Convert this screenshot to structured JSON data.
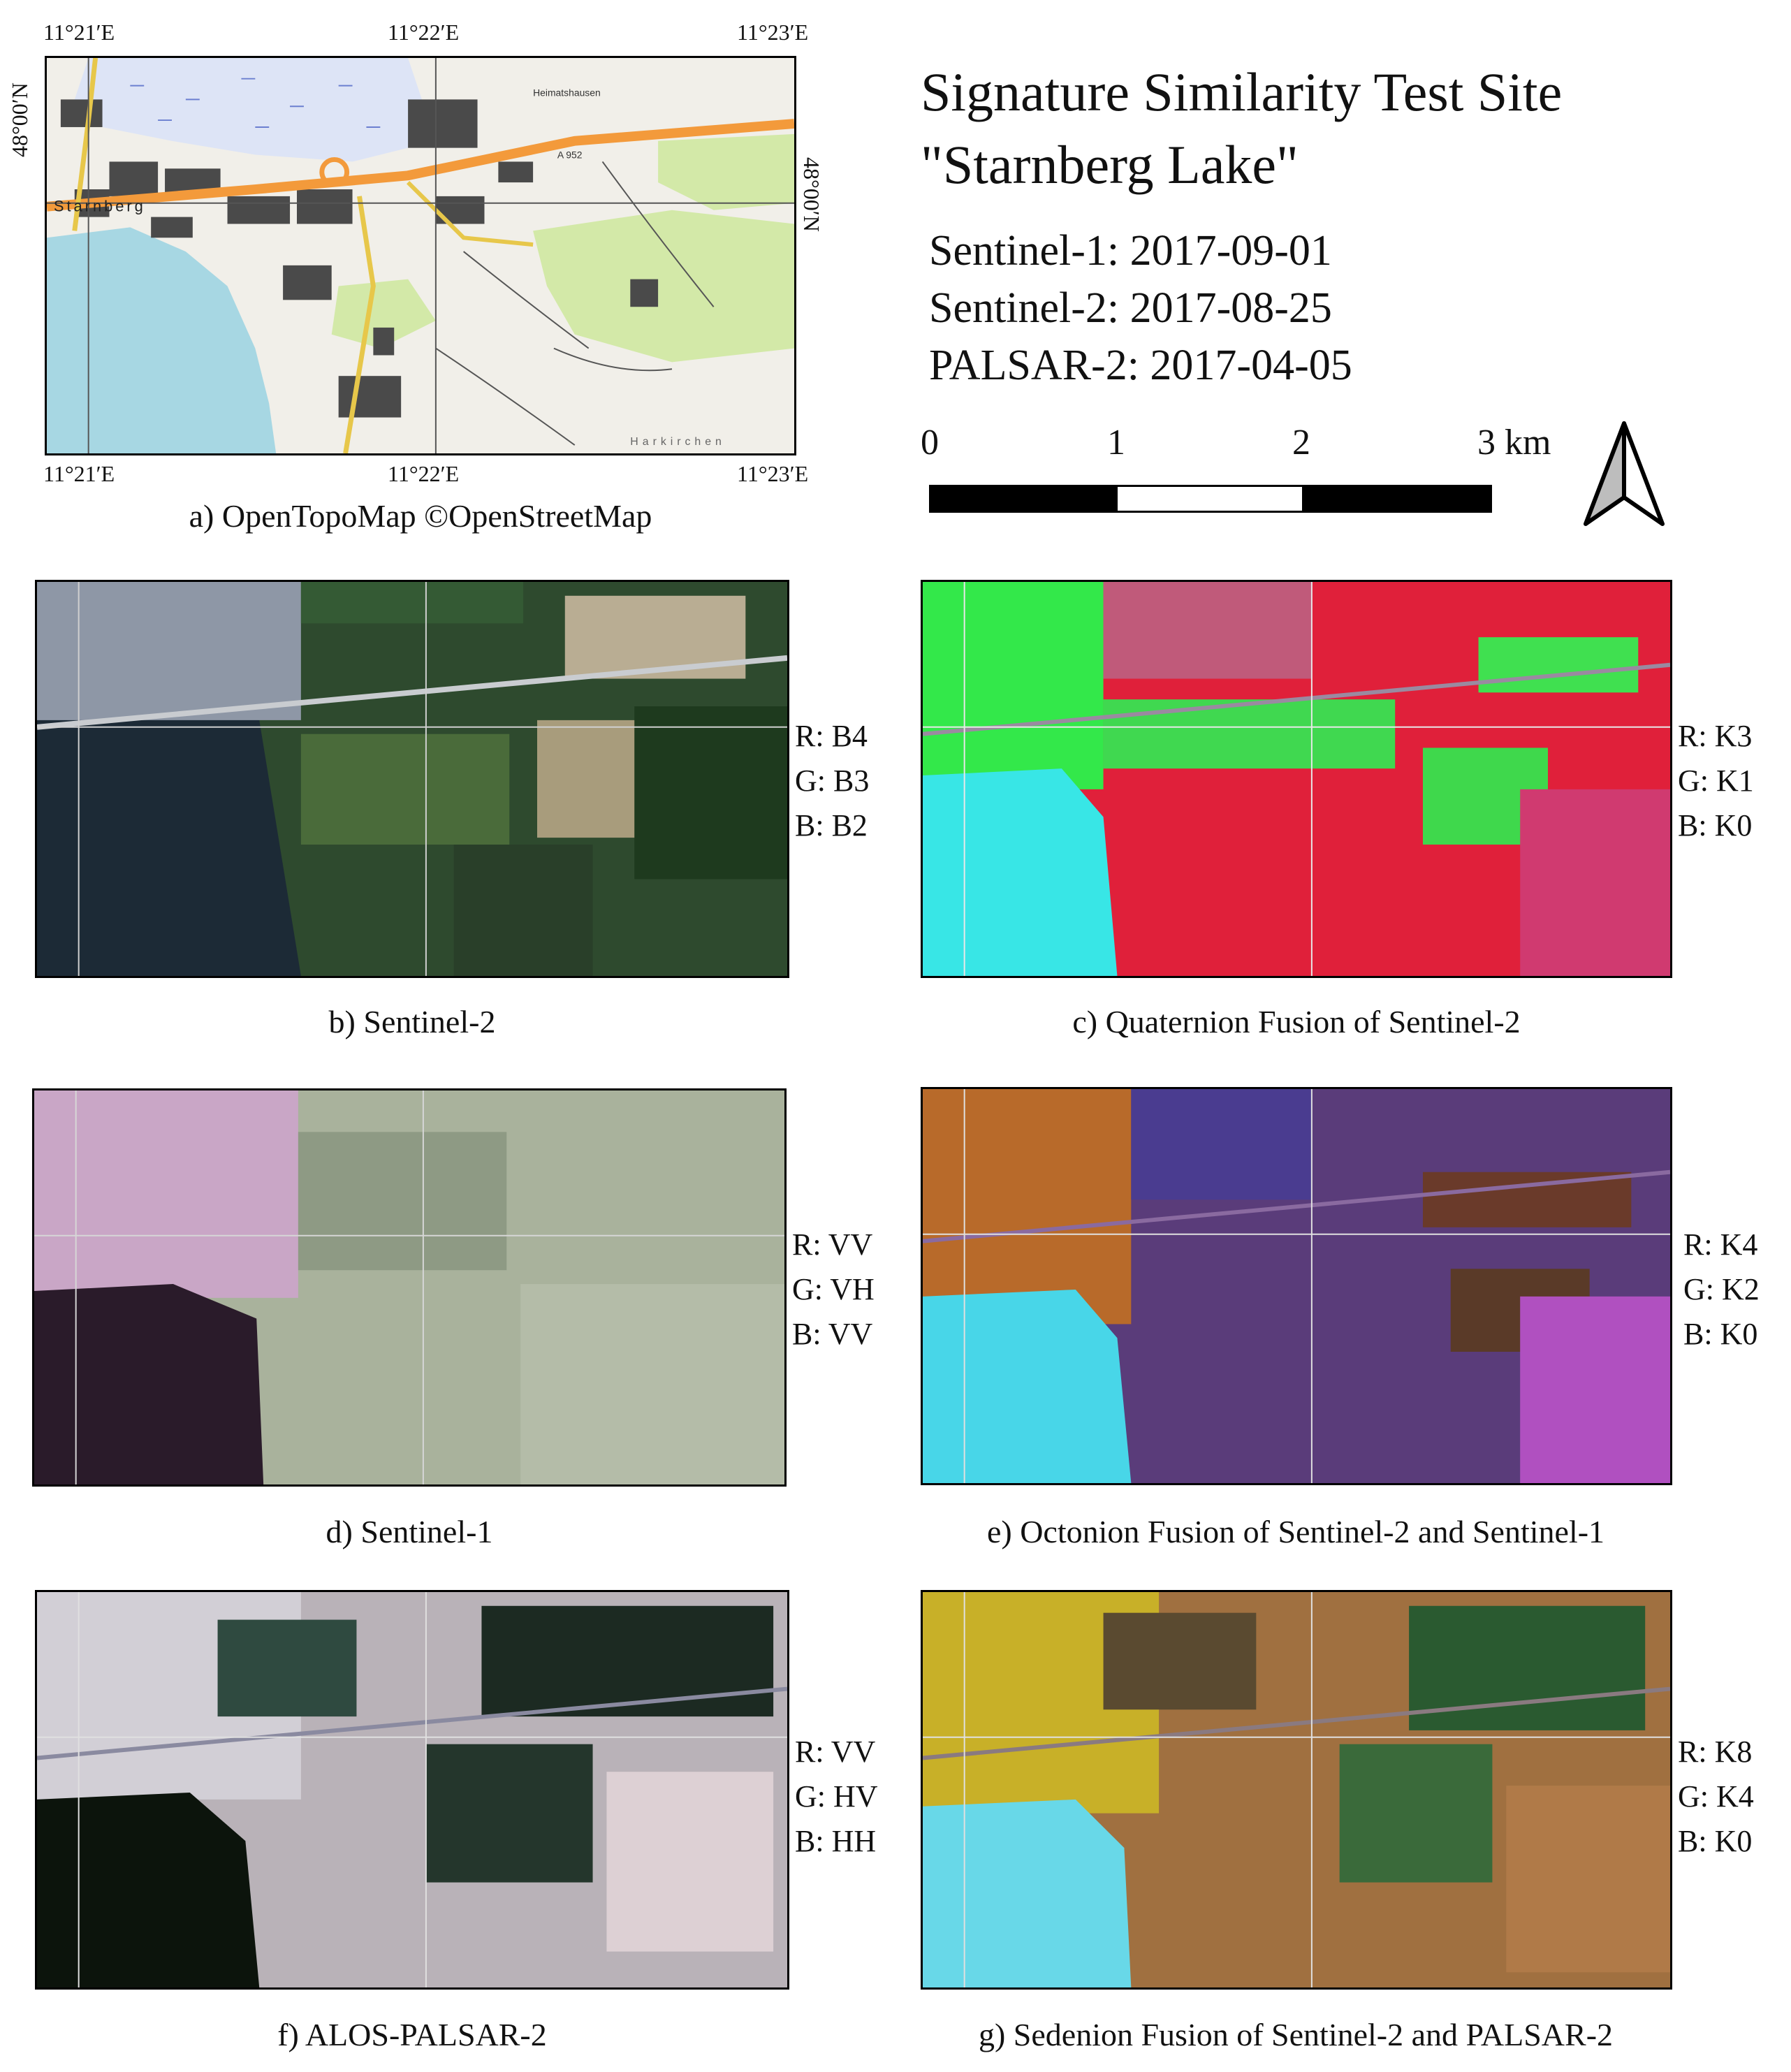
{
  "map": {
    "coords_top": [
      "11°21′E",
      "11°22′E",
      "11°23′E"
    ],
    "coords_bottom": [
      "11°21′E",
      "11°22′E",
      "11°23′E"
    ],
    "lat_left": "48°00′N",
    "lat_right": "48°00′N",
    "place_labels": [
      "Heimatshausen",
      "A 952",
      "Harkirchen"
    ],
    "town_label": "Starnberg",
    "caption": "a) OpenTopoMap ©OpenStreetMap"
  },
  "header": {
    "title_line1": "Signature Similarity Test Site",
    "title_line2": "\"Starnberg Lake\"",
    "dates": [
      "Sentinel-1: 2017-09-01",
      "Sentinel-2: 2017-08-25",
      "PALSAR-2: 2017-04-05"
    ]
  },
  "scale": {
    "labels": [
      "0",
      "1",
      "2",
      "3 km"
    ]
  },
  "panels": {
    "b": {
      "caption": "b) Sentinel-2",
      "legend": [
        "R: B4",
        "G: B3",
        "B: B2"
      ]
    },
    "c": {
      "caption": "c) Quaternion Fusion of Sentinel-2",
      "legend": [
        "R: K3",
        "G: K1",
        "B: K0"
      ]
    },
    "d": {
      "caption": "d) Sentinel-1",
      "legend": [
        "R: VV",
        "G: VH",
        "B: VV"
      ]
    },
    "e": {
      "caption": "e) Octonion Fusion of Sentinel-2 and Sentinel-1",
      "legend": [
        "R: K4",
        "G: K2",
        "B: K0"
      ]
    },
    "f": {
      "caption": "f) ALOS-PALSAR-2",
      "legend": [
        "R: VV",
        "G: HV",
        "B: HH"
      ]
    },
    "g": {
      "caption": "g) Sedenion Fusion of Sentinel-2 and PALSAR-2",
      "legend": [
        "R: K8",
        "G: K4",
        "B: K0"
      ]
    }
  }
}
